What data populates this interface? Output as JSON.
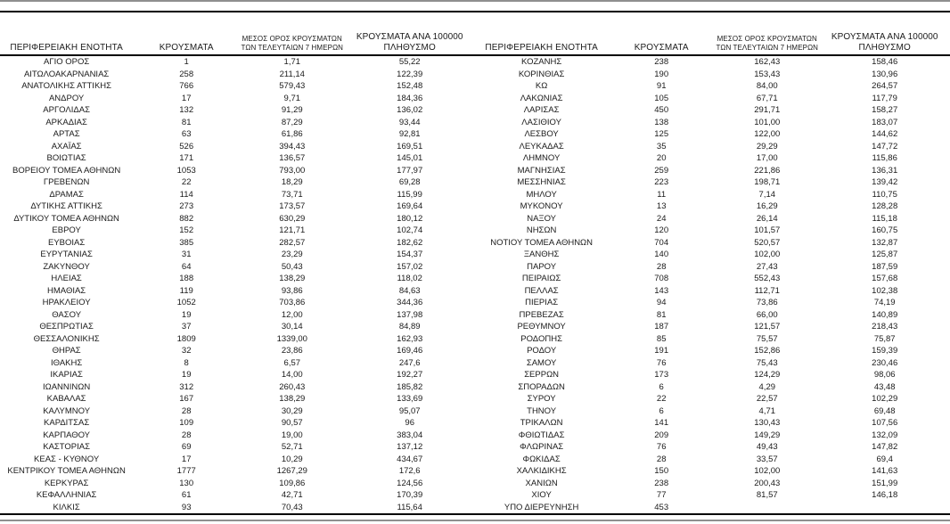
{
  "colors": {
    "line_black": "#000000",
    "line_gray": "#8f8f8f",
    "text": "#1a1a1a",
    "background": "#ffffff"
  },
  "table_header": {
    "region": "ΠΕΡΙΦΕΡΕΙΑΚΗ ΕΝΟΤΗΤΑ",
    "cases": "ΚΡΟΥΣΜΑΤΑ",
    "avg_line1": "ΜΕΣΟΣ ΟΡΟΣ ΚΡΟΥΣΜΑΤΩΝ",
    "avg_line2": "ΤΩΝ ΤΕΛΕΥΤΑΙΩΝ 7 ΗΜΕΡΩΝ",
    "per100k_line1": "ΚΡΟΥΣΜΑΤΑ ΑΝΑ 100000",
    "per100k_line2": "ΠΛΗΘΥΣΜΟ"
  },
  "tables": {
    "left": {
      "rows": [
        [
          "ΑΓΙΟ ΟΡΟΣ",
          "1",
          "1,71",
          "55,22"
        ],
        [
          "ΑΙΤΩΛΟΑΚΑΡΝΑΝΙΑΣ",
          "258",
          "211,14",
          "122,39"
        ],
        [
          "ΑΝΑΤΟΛΙΚΗΣ ΑΤΤΙΚΗΣ",
          "766",
          "579,43",
          "152,48"
        ],
        [
          "ΑΝΔΡΟΥ",
          "17",
          "9,71",
          "184,36"
        ],
        [
          "ΑΡΓΟΛΙΔΑΣ",
          "132",
          "91,29",
          "136,02"
        ],
        [
          "ΑΡΚΑΔΙΑΣ",
          "81",
          "87,29",
          "93,44"
        ],
        [
          "ΑΡΤΑΣ",
          "63",
          "61,86",
          "92,81"
        ],
        [
          "ΑΧΑΪΑΣ",
          "526",
          "394,43",
          "169,51"
        ],
        [
          "ΒΟΙΩΤΙΑΣ",
          "171",
          "136,57",
          "145,01"
        ],
        [
          "ΒΟΡΕΙΟΥ ΤΟΜΕΑ ΑΘΗΝΩΝ",
          "1053",
          "793,00",
          "177,97"
        ],
        [
          "ΓΡΕΒΕΝΩΝ",
          "22",
          "18,29",
          "69,28"
        ],
        [
          "ΔΡΑΜΑΣ",
          "114",
          "73,71",
          "115,99"
        ],
        [
          "ΔΥΤΙΚΗΣ ΑΤΤΙΚΗΣ",
          "273",
          "173,57",
          "169,64"
        ],
        [
          "ΔΥΤΙΚΟΥ ΤΟΜΕΑ ΑΘΗΝΩΝ",
          "882",
          "630,29",
          "180,12"
        ],
        [
          "ΕΒΡΟΥ",
          "152",
          "121,71",
          "102,74"
        ],
        [
          "ΕΥΒΟΙΑΣ",
          "385",
          "282,57",
          "182,62"
        ],
        [
          "ΕΥΡΥΤΑΝΙΑΣ",
          "31",
          "23,29",
          "154,37"
        ],
        [
          "ΖΑΚΥΝΘΟΥ",
          "64",
          "50,43",
          "157,02"
        ],
        [
          "ΗΛΕΙΑΣ",
          "188",
          "138,29",
          "118,02"
        ],
        [
          "ΗΜΑΘΙΑΣ",
          "119",
          "93,86",
          "84,63"
        ],
        [
          "ΗΡΑΚΛΕΙΟΥ",
          "1052",
          "703,86",
          "344,36"
        ],
        [
          "ΘΑΣΟΥ",
          "19",
          "12,00",
          "137,98"
        ],
        [
          "ΘΕΣΠΡΩΤΙΑΣ",
          "37",
          "30,14",
          "84,89"
        ],
        [
          "ΘΕΣΣΑΛΟΝΙΚΗΣ",
          "1809",
          "1339,00",
          "162,93"
        ],
        [
          "ΘΗΡΑΣ",
          "32",
          "23,86",
          "169,46"
        ],
        [
          "ΙΘΑΚΗΣ",
          "8",
          "6,57",
          "247,6"
        ],
        [
          "ΙΚΑΡΙΑΣ",
          "19",
          "14,00",
          "192,27"
        ],
        [
          "ΙΩΑΝΝΙΝΩΝ",
          "312",
          "260,43",
          "185,82"
        ],
        [
          "ΚΑΒΑΛΑΣ",
          "167",
          "138,29",
          "133,69"
        ],
        [
          "ΚΑΛΥΜΝΟΥ",
          "28",
          "30,29",
          "95,07"
        ],
        [
          "ΚΑΡΔΙΤΣΑΣ",
          "109",
          "90,57",
          "96"
        ],
        [
          "ΚΑΡΠΑΘΟΥ",
          "28",
          "19,00",
          "383,04"
        ],
        [
          "ΚΑΣΤΟΡΙΑΣ",
          "69",
          "52,71",
          "137,12"
        ],
        [
          "ΚΕΑΣ - ΚΥΘΝΟΥ",
          "17",
          "10,29",
          "434,67"
        ],
        [
          "ΚΕΝΤΡΙΚΟΥ ΤΟΜΕΑ ΑΘΗΝΩΝ",
          "1777",
          "1267,29",
          "172,6"
        ],
        [
          "ΚΕΡΚΥΡΑΣ",
          "130",
          "109,86",
          "124,56"
        ],
        [
          "ΚΕΦΑΛΛΗΝΙΑΣ",
          "61",
          "42,71",
          "170,39"
        ],
        [
          "ΚΙΛΚΙΣ",
          "93",
          "70,43",
          "115,64"
        ]
      ]
    },
    "right": {
      "rows": [
        [
          "ΚΟΖΑΝΗΣ",
          "238",
          "162,43",
          "158,46"
        ],
        [
          "ΚΟΡΙΝΘΙΑΣ",
          "190",
          "153,43",
          "130,96"
        ],
        [
          "ΚΩ",
          "91",
          "84,00",
          "264,57"
        ],
        [
          "ΛΑΚΩΝΙΑΣ",
          "105",
          "67,71",
          "117,79"
        ],
        [
          "ΛΑΡΙΣΑΣ",
          "450",
          "291,71",
          "158,27"
        ],
        [
          "ΛΑΣΙΘΙΟΥ",
          "138",
          "101,00",
          "183,07"
        ],
        [
          "ΛΕΣΒΟΥ",
          "125",
          "122,00",
          "144,62"
        ],
        [
          "ΛΕΥΚΑΔΑΣ",
          "35",
          "29,29",
          "147,72"
        ],
        [
          "ΛΗΜΝΟΥ",
          "20",
          "17,00",
          "115,86"
        ],
        [
          "ΜΑΓΝΗΣΙΑΣ",
          "259",
          "221,86",
          "136,31"
        ],
        [
          "ΜΕΣΣΗΝΙΑΣ",
          "223",
          "198,71",
          "139,42"
        ],
        [
          "ΜΗΛΟΥ",
          "11",
          "7,14",
          "110,75"
        ],
        [
          "ΜΥΚΟΝΟΥ",
          "13",
          "16,29",
          "128,28"
        ],
        [
          "ΝΑΞΟΥ",
          "24",
          "26,14",
          "115,18"
        ],
        [
          "ΝΗΣΩΝ",
          "120",
          "101,57",
          "160,75"
        ],
        [
          "ΝΟΤΙΟΥ ΤΟΜΕΑ ΑΘΗΝΩΝ",
          "704",
          "520,57",
          "132,87"
        ],
        [
          "ΞΑΝΘΗΣ",
          "140",
          "102,00",
          "125,87"
        ],
        [
          "ΠΑΡΟΥ",
          "28",
          "27,43",
          "187,59"
        ],
        [
          "ΠΕΙΡΑΙΩΣ",
          "708",
          "552,43",
          "157,68"
        ],
        [
          "ΠΕΛΛΑΣ",
          "143",
          "112,71",
          "102,38"
        ],
        [
          "ΠΙΕΡΙΑΣ",
          "94",
          "73,86",
          "74,19"
        ],
        [
          "ΠΡΕΒΕΖΑΣ",
          "81",
          "66,00",
          "140,89"
        ],
        [
          "ΡΕΘΥΜΝΟΥ",
          "187",
          "121,57",
          "218,43"
        ],
        [
          "ΡΟΔΟΠΗΣ",
          "85",
          "75,57",
          "75,87"
        ],
        [
          "ΡΟΔΟΥ",
          "191",
          "152,86",
          "159,39"
        ],
        [
          "ΣΑΜΟΥ",
          "76",
          "75,43",
          "230,46"
        ],
        [
          "ΣΕΡΡΩΝ",
          "173",
          "124,29",
          "98,06"
        ],
        [
          "ΣΠΟΡΑΔΩΝ",
          "6",
          "4,29",
          "43,48"
        ],
        [
          "ΣΥΡΟΥ",
          "22",
          "22,57",
          "102,29"
        ],
        [
          "ΤΗΝΟΥ",
          "6",
          "4,71",
          "69,48"
        ],
        [
          "ΤΡΙΚΑΛΩΝ",
          "141",
          "130,43",
          "107,56"
        ],
        [
          "ΦΘΙΩΤΙΔΑΣ",
          "209",
          "149,29",
          "132,09"
        ],
        [
          "ΦΛΩΡΙΝΑΣ",
          "76",
          "49,43",
          "147,82"
        ],
        [
          "ΦΩΚΙΔΑΣ",
          "28",
          "33,57",
          "69,4"
        ],
        [
          "ΧΑΛΚΙΔΙΚΗΣ",
          "150",
          "102,00",
          "141,63"
        ],
        [
          "ΧΑΝΙΩΝ",
          "238",
          "200,43",
          "151,99"
        ],
        [
          "ΧΙΟΥ",
          "77",
          "81,57",
          "146,18"
        ],
        [
          "ΥΠΟ ΔΙΕΡΕΥΝΗΣΗ",
          "453",
          "",
          ""
        ]
      ]
    }
  }
}
